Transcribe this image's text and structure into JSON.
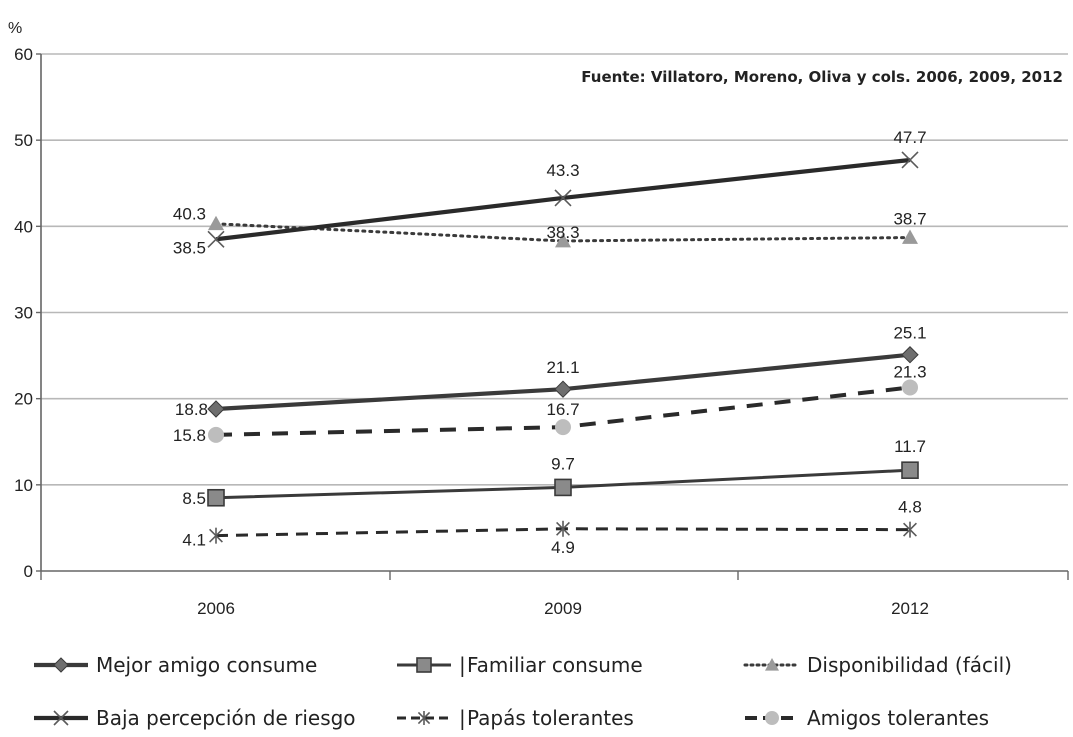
{
  "chart_data": {
    "type": "line",
    "unit_label": "%",
    "source": "Fuente: Villatoro, Moreno, Oliva y cols. 2006, 2009, 2012",
    "categories": [
      "2006",
      "2009",
      "2012"
    ],
    "ylim": [
      0,
      60
    ],
    "yticks": [
      0,
      10,
      20,
      30,
      40,
      50,
      60
    ],
    "grid": true,
    "legend_position": "bottom",
    "series": [
      {
        "name": "Mejor amigo consume",
        "values": [
          18.8,
          21.1,
          25.1
        ],
        "labels": [
          "18.8",
          "21.1",
          "25.1"
        ],
        "line_style": "solid-thick",
        "marker": "diamond",
        "color": "#3a3a3a",
        "marker_color": "#6e6e6e"
      },
      {
        "name": "Familiar consume",
        "values": [
          8.5,
          9.7,
          11.7
        ],
        "labels": [
          "8.5",
          "9.7",
          "11.7"
        ],
        "line_style": "solid",
        "marker": "square",
        "color": "#3a3a3a",
        "marker_color": "#8a8a8a"
      },
      {
        "name": "Disponibilidad (fácil)",
        "values": [
          40.3,
          38.3,
          38.7
        ],
        "labels": [
          "40.3",
          "38.3",
          "38.7"
        ],
        "line_style": "dotted",
        "marker": "triangle",
        "color": "#3a3a3a",
        "marker_color": "#9a9a9a"
      },
      {
        "name": "Baja percepción de riesgo",
        "values": [
          38.5,
          43.3,
          47.7
        ],
        "labels": [
          "38.5",
          "43.3",
          "47.7"
        ],
        "line_style": "solid-thick",
        "marker": "x",
        "color": "#2a2a2a",
        "marker_color": "#5a5a5a"
      },
      {
        "name": "Papás tolerantes",
        "values": [
          4.1,
          4.9,
          4.8
        ],
        "labels": [
          "4.1",
          "4.9",
          "4.8"
        ],
        "line_style": "dashed",
        "marker": "asterisk",
        "color": "#2a2a2a",
        "marker_color": "#5a5a5a"
      },
      {
        "name": "Amigos tolerantes",
        "values": [
          15.8,
          16.7,
          21.3
        ],
        "labels": [
          "15.8",
          "16.7",
          "21.3"
        ],
        "line_style": "dashed-thick",
        "marker": "circle",
        "color": "#2a2a2a",
        "marker_color": "#bdbdbd"
      }
    ],
    "legend_item_separator": "|"
  }
}
